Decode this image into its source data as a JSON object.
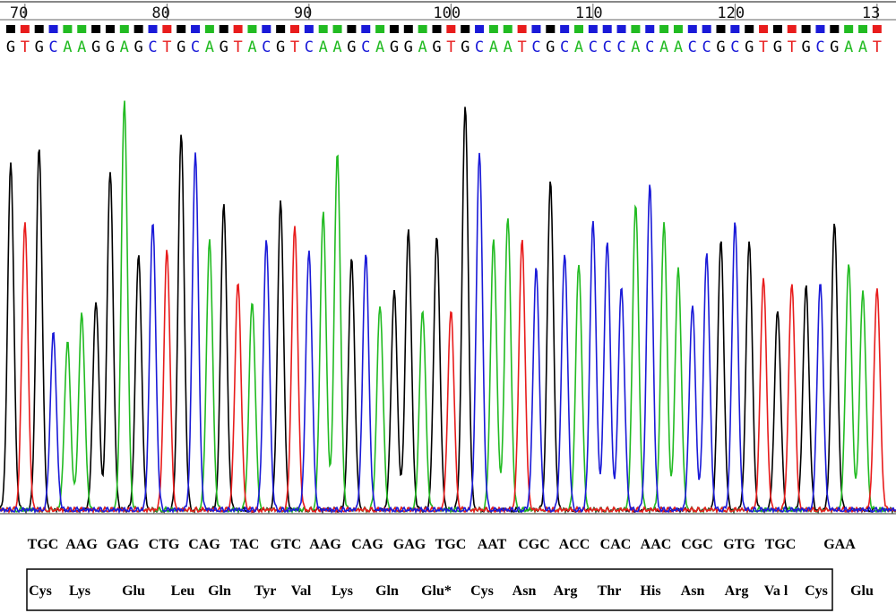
{
  "chart_data": {
    "type": "line",
    "title": "",
    "position_ticks": [
      "70",
      "80",
      "90",
      "100",
      "110",
      "120",
      "13"
    ],
    "sequence": "GTGCAAGGAGCTGCAGTACGTCAAGCAGGAGTGCAATCGCACCCACAACCGCGTGTGCGAAT",
    "base_colors": {
      "A": "#22bb22",
      "C": "#1a1ad8",
      "G": "#000000",
      "T": "#e81c1c"
    },
    "peak_heights": [
      0.75,
      0.62,
      0.78,
      0.38,
      0.36,
      0.42,
      0.45,
      0.73,
      0.88,
      0.55,
      0.62,
      0.56,
      0.81,
      0.77,
      0.58,
      0.66,
      0.49,
      0.45,
      0.58,
      0.66,
      0.61,
      0.56,
      0.64,
      0.77,
      0.54,
      0.55,
      0.44,
      0.47,
      0.6,
      0.43,
      0.59,
      0.43,
      0.87,
      0.77,
      0.58,
      0.63,
      0.58,
      0.52,
      0.71,
      0.55,
      0.53,
      0.62,
      0.58,
      0.48,
      0.66,
      0.7,
      0.62,
      0.52,
      0.44,
      0.55,
      0.58,
      0.62,
      0.58,
      0.5,
      0.43,
      0.49,
      0.48,
      0.49,
      0.62,
      0.53,
      0.47,
      0.48
    ],
    "codons": [
      "TGC",
      "AAG",
      "GAG",
      "CTG",
      "CAG",
      "TAC",
      "GTC",
      "AAG",
      "CAG",
      "GAG",
      "TGC",
      "AAT",
      "CGC",
      "ACC",
      "CAC",
      "AAC",
      "CGC",
      "GTG",
      "TGC",
      "GAA"
    ],
    "amino_acids": [
      "Cys",
      "Lys",
      "Glu",
      "Leu",
      "Gln",
      "Tyr",
      "Val",
      "Lys",
      "Gln",
      "Glu*",
      "Cys",
      "Asn",
      "Arg",
      "Thr",
      "His",
      "Asn",
      "Arg",
      "Va l",
      "Cys",
      "Glu"
    ]
  }
}
